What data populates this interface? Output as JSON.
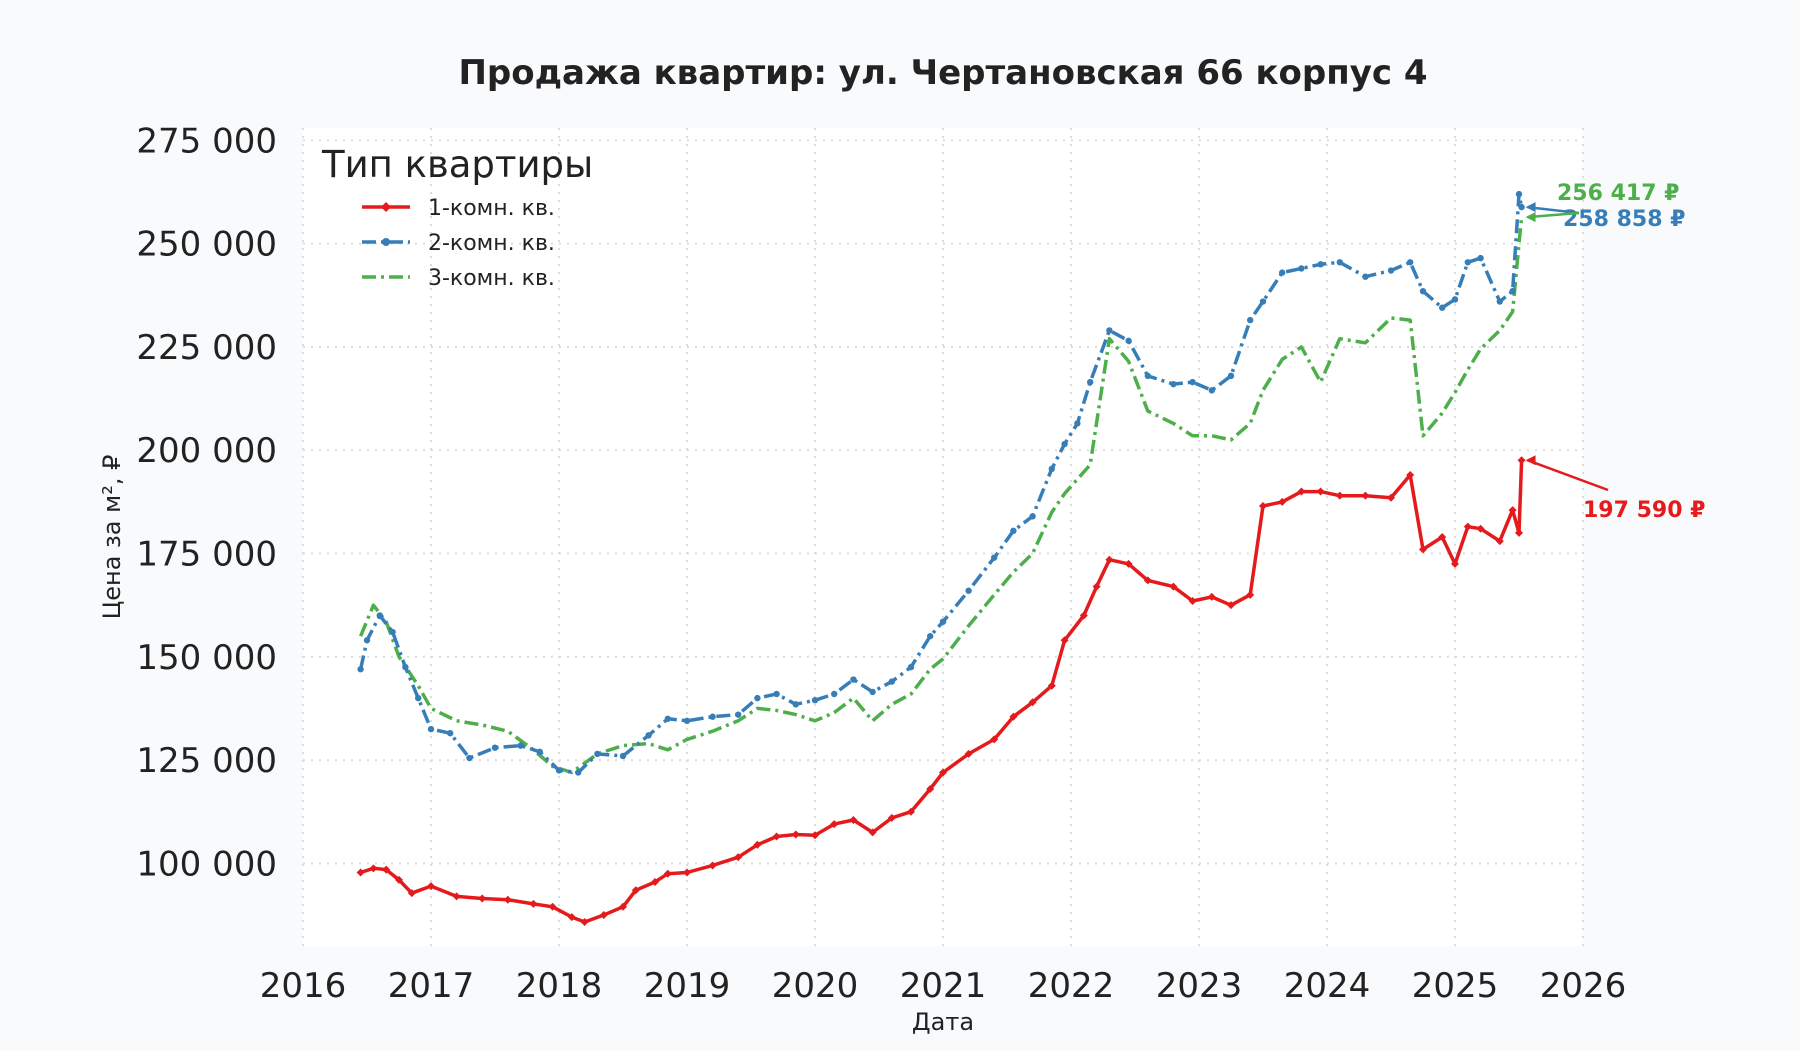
{
  "chart_data": {
    "type": "line",
    "title": "Продажа квартир: ул. Чертановская 66 корпус 4",
    "xlabel": "Дата",
    "ylabel": "Цена за м², ₽",
    "xlim": [
      2016,
      2026
    ],
    "ylim": [
      80000,
      278000
    ],
    "x_ticks": [
      "2016",
      "2017",
      "2018",
      "2019",
      "2020",
      "2021",
      "2022",
      "2023",
      "2024",
      "2025",
      "2026"
    ],
    "y_ticks": [
      "100 000",
      "125 000",
      "150 000",
      "175 000",
      "200 000",
      "225 000",
      "250 000",
      "275 000"
    ],
    "y_tick_values": [
      100000,
      125000,
      150000,
      175000,
      200000,
      225000,
      250000,
      275000
    ],
    "grid": true,
    "legend": {
      "title": "Тип квартиры",
      "position": "top-left"
    },
    "series": [
      {
        "name": "1-комн. кв.",
        "color": "#e41a1c",
        "style": "solid",
        "marker": "diamond",
        "end_label": "197 590 ₽",
        "points": [
          [
            2016.45,
            97800
          ],
          [
            2016.55,
            98800
          ],
          [
            2016.65,
            98500
          ],
          [
            2016.75,
            96000
          ],
          [
            2016.85,
            92800
          ],
          [
            2017.0,
            94500
          ],
          [
            2017.2,
            92000
          ],
          [
            2017.4,
            91500
          ],
          [
            2017.6,
            91200
          ],
          [
            2017.8,
            90200
          ],
          [
            2017.95,
            89500
          ],
          [
            2018.1,
            87000
          ],
          [
            2018.2,
            85800
          ],
          [
            2018.35,
            87500
          ],
          [
            2018.5,
            89500
          ],
          [
            2018.6,
            93500
          ],
          [
            2018.75,
            95500
          ],
          [
            2018.85,
            97500
          ],
          [
            2019.0,
            97800
          ],
          [
            2019.2,
            99500
          ],
          [
            2019.4,
            101500
          ],
          [
            2019.55,
            104500
          ],
          [
            2019.7,
            106500
          ],
          [
            2019.85,
            107000
          ],
          [
            2020.0,
            106800
          ],
          [
            2020.15,
            109500
          ],
          [
            2020.3,
            110500
          ],
          [
            2020.45,
            107500
          ],
          [
            2020.6,
            111000
          ],
          [
            2020.75,
            112500
          ],
          [
            2020.9,
            118000
          ],
          [
            2021.0,
            122000
          ],
          [
            2021.2,
            126500
          ],
          [
            2021.4,
            130000
          ],
          [
            2021.55,
            135500
          ],
          [
            2021.7,
            139000
          ],
          [
            2021.85,
            143000
          ],
          [
            2021.95,
            154000
          ],
          [
            2022.1,
            160000
          ],
          [
            2022.2,
            167000
          ],
          [
            2022.3,
            173500
          ],
          [
            2022.45,
            172500
          ],
          [
            2022.6,
            168500
          ],
          [
            2022.8,
            167000
          ],
          [
            2022.95,
            163500
          ],
          [
            2023.1,
            164500
          ],
          [
            2023.25,
            162500
          ],
          [
            2023.4,
            165000
          ],
          [
            2023.5,
            186500
          ],
          [
            2023.65,
            187500
          ],
          [
            2023.8,
            190000
          ],
          [
            2023.95,
            190000
          ],
          [
            2024.1,
            189000
          ],
          [
            2024.3,
            189000
          ],
          [
            2024.5,
            188500
          ],
          [
            2024.65,
            194000
          ],
          [
            2024.75,
            176000
          ],
          [
            2024.9,
            179000
          ],
          [
            2025.0,
            172500
          ],
          [
            2025.1,
            181500
          ],
          [
            2025.2,
            181000
          ],
          [
            2025.35,
            178000
          ],
          [
            2025.45,
            185500
          ],
          [
            2025.5,
            180000
          ],
          [
            2025.52,
            197590
          ]
        ]
      },
      {
        "name": "2-комн. кв.",
        "color": "#377eb8",
        "style": "dashdot",
        "marker": "circle",
        "end_label": "258 858 ₽",
        "points": [
          [
            2016.45,
            147000
          ],
          [
            2016.5,
            154000
          ],
          [
            2016.6,
            160000
          ],
          [
            2016.7,
            156000
          ],
          [
            2016.8,
            147500
          ],
          [
            2016.9,
            140000
          ],
          [
            2017.0,
            132500
          ],
          [
            2017.15,
            131500
          ],
          [
            2017.3,
            125500
          ],
          [
            2017.5,
            128000
          ],
          [
            2017.7,
            128500
          ],
          [
            2017.85,
            127000
          ],
          [
            2018.0,
            122500
          ],
          [
            2018.15,
            122000
          ],
          [
            2018.3,
            126500
          ],
          [
            2018.5,
            126000
          ],
          [
            2018.7,
            131000
          ],
          [
            2018.85,
            135000
          ],
          [
            2019.0,
            134500
          ],
          [
            2019.2,
            135500
          ],
          [
            2019.4,
            136000
          ],
          [
            2019.55,
            140000
          ],
          [
            2019.7,
            141000
          ],
          [
            2019.85,
            138500
          ],
          [
            2020.0,
            139500
          ],
          [
            2020.15,
            141000
          ],
          [
            2020.3,
            144500
          ],
          [
            2020.45,
            141500
          ],
          [
            2020.6,
            144000
          ],
          [
            2020.75,
            147500
          ],
          [
            2020.9,
            155000
          ],
          [
            2021.0,
            158500
          ],
          [
            2021.2,
            166000
          ],
          [
            2021.4,
            174000
          ],
          [
            2021.55,
            180500
          ],
          [
            2021.7,
            184000
          ],
          [
            2021.85,
            195500
          ],
          [
            2021.95,
            201500
          ],
          [
            2022.05,
            206500
          ],
          [
            2022.15,
            216500
          ],
          [
            2022.3,
            229000
          ],
          [
            2022.45,
            226500
          ],
          [
            2022.6,
            218000
          ],
          [
            2022.8,
            216000
          ],
          [
            2022.95,
            216500
          ],
          [
            2023.1,
            214500
          ],
          [
            2023.25,
            218000
          ],
          [
            2023.4,
            231500
          ],
          [
            2023.5,
            236000
          ],
          [
            2023.65,
            243000
          ],
          [
            2023.8,
            244000
          ],
          [
            2023.95,
            245000
          ],
          [
            2024.1,
            245500
          ],
          [
            2024.3,
            242000
          ],
          [
            2024.5,
            243500
          ],
          [
            2024.65,
            245500
          ],
          [
            2024.75,
            238500
          ],
          [
            2024.9,
            234500
          ],
          [
            2025.0,
            236500
          ],
          [
            2025.1,
            245500
          ],
          [
            2025.2,
            246500
          ],
          [
            2025.35,
            236000
          ],
          [
            2025.45,
            238500
          ],
          [
            2025.5,
            262000
          ],
          [
            2025.52,
            258858
          ]
        ]
      },
      {
        "name": "3-комн. кв.",
        "color": "#4daf4a",
        "style": "dashdot",
        "marker": "none",
        "end_label": "256 417 ₽",
        "points": [
          [
            2016.45,
            155000
          ],
          [
            2016.55,
            162500
          ],
          [
            2016.65,
            158500
          ],
          [
            2016.75,
            150000
          ],
          [
            2016.9,
            143000
          ],
          [
            2017.0,
            137500
          ],
          [
            2017.2,
            134500
          ],
          [
            2017.4,
            133500
          ],
          [
            2017.6,
            132000
          ],
          [
            2017.8,
            127500
          ],
          [
            2017.95,
            123500
          ],
          [
            2018.1,
            122000
          ],
          [
            2018.3,
            126500
          ],
          [
            2018.5,
            128500
          ],
          [
            2018.7,
            129000
          ],
          [
            2018.85,
            127500
          ],
          [
            2019.0,
            130000
          ],
          [
            2019.2,
            132000
          ],
          [
            2019.4,
            134500
          ],
          [
            2019.55,
            137500
          ],
          [
            2019.7,
            137000
          ],
          [
            2019.85,
            136000
          ],
          [
            2020.0,
            134500
          ],
          [
            2020.15,
            136500
          ],
          [
            2020.3,
            140000
          ],
          [
            2020.45,
            134500
          ],
          [
            2020.6,
            138500
          ],
          [
            2020.75,
            141000
          ],
          [
            2020.9,
            147000
          ],
          [
            2021.0,
            149500
          ],
          [
            2021.2,
            157500
          ],
          [
            2021.4,
            165000
          ],
          [
            2021.55,
            170500
          ],
          [
            2021.7,
            175000
          ],
          [
            2021.85,
            185000
          ],
          [
            2021.95,
            189500
          ],
          [
            2022.05,
            193000
          ],
          [
            2022.15,
            196500
          ],
          [
            2022.3,
            227000
          ],
          [
            2022.45,
            221500
          ],
          [
            2022.6,
            209500
          ],
          [
            2022.8,
            206500
          ],
          [
            2022.95,
            203500
          ],
          [
            2023.1,
            203500
          ],
          [
            2023.25,
            202500
          ],
          [
            2023.4,
            206500
          ],
          [
            2023.5,
            214500
          ],
          [
            2023.65,
            222000
          ],
          [
            2023.8,
            225000
          ],
          [
            2023.95,
            216500
          ],
          [
            2024.1,
            227000
          ],
          [
            2024.3,
            226000
          ],
          [
            2024.5,
            232000
          ],
          [
            2024.65,
            231500
          ],
          [
            2024.75,
            203500
          ],
          [
            2024.9,
            209000
          ],
          [
            2025.0,
            214000
          ],
          [
            2025.1,
            219500
          ],
          [
            2025.2,
            224500
          ],
          [
            2025.35,
            229000
          ],
          [
            2025.45,
            233500
          ],
          [
            2025.5,
            250000
          ],
          [
            2025.52,
            256417
          ]
        ]
      }
    ]
  }
}
